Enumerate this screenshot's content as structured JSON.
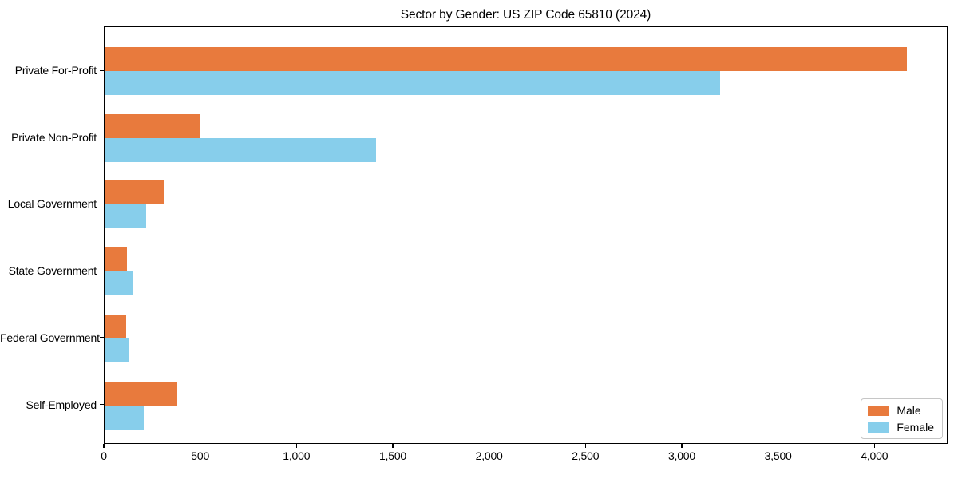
{
  "chart_data": {
    "type": "bar",
    "orientation": "horizontal",
    "title": "Sector by Gender: US ZIP Code 65810 (2024)",
    "categories": [
      "Private For-Profit",
      "Private Non-Profit",
      "Local Government",
      "State Government",
      "Federal Government",
      "Self-Employed"
    ],
    "series": [
      {
        "name": "Male",
        "color": "#e87a3d",
        "values": [
          4165,
          495,
          310,
          115,
          110,
          375
        ]
      },
      {
        "name": "Female",
        "color": "#87ceeb",
        "values": [
          3195,
          1410,
          215,
          150,
          125,
          205
        ]
      }
    ],
    "xlabel": "",
    "ylabel": "",
    "xlim": [
      0,
      4380
    ],
    "xticks": [
      0,
      500,
      1000,
      1500,
      2000,
      2500,
      3000,
      3500,
      4000
    ],
    "xtick_labels": [
      "0",
      "500",
      "1,000",
      "1,500",
      "2,000",
      "2,500",
      "3,000",
      "3,500",
      "4,000"
    ],
    "grid": false,
    "legend": {
      "position": "lower right",
      "entries": [
        "Male",
        "Female"
      ]
    }
  },
  "frame": {
    "background": "#ffffff",
    "spine_color": "#000000",
    "text_color": "#000000",
    "legend_border_color": "#c6c6c6"
  }
}
